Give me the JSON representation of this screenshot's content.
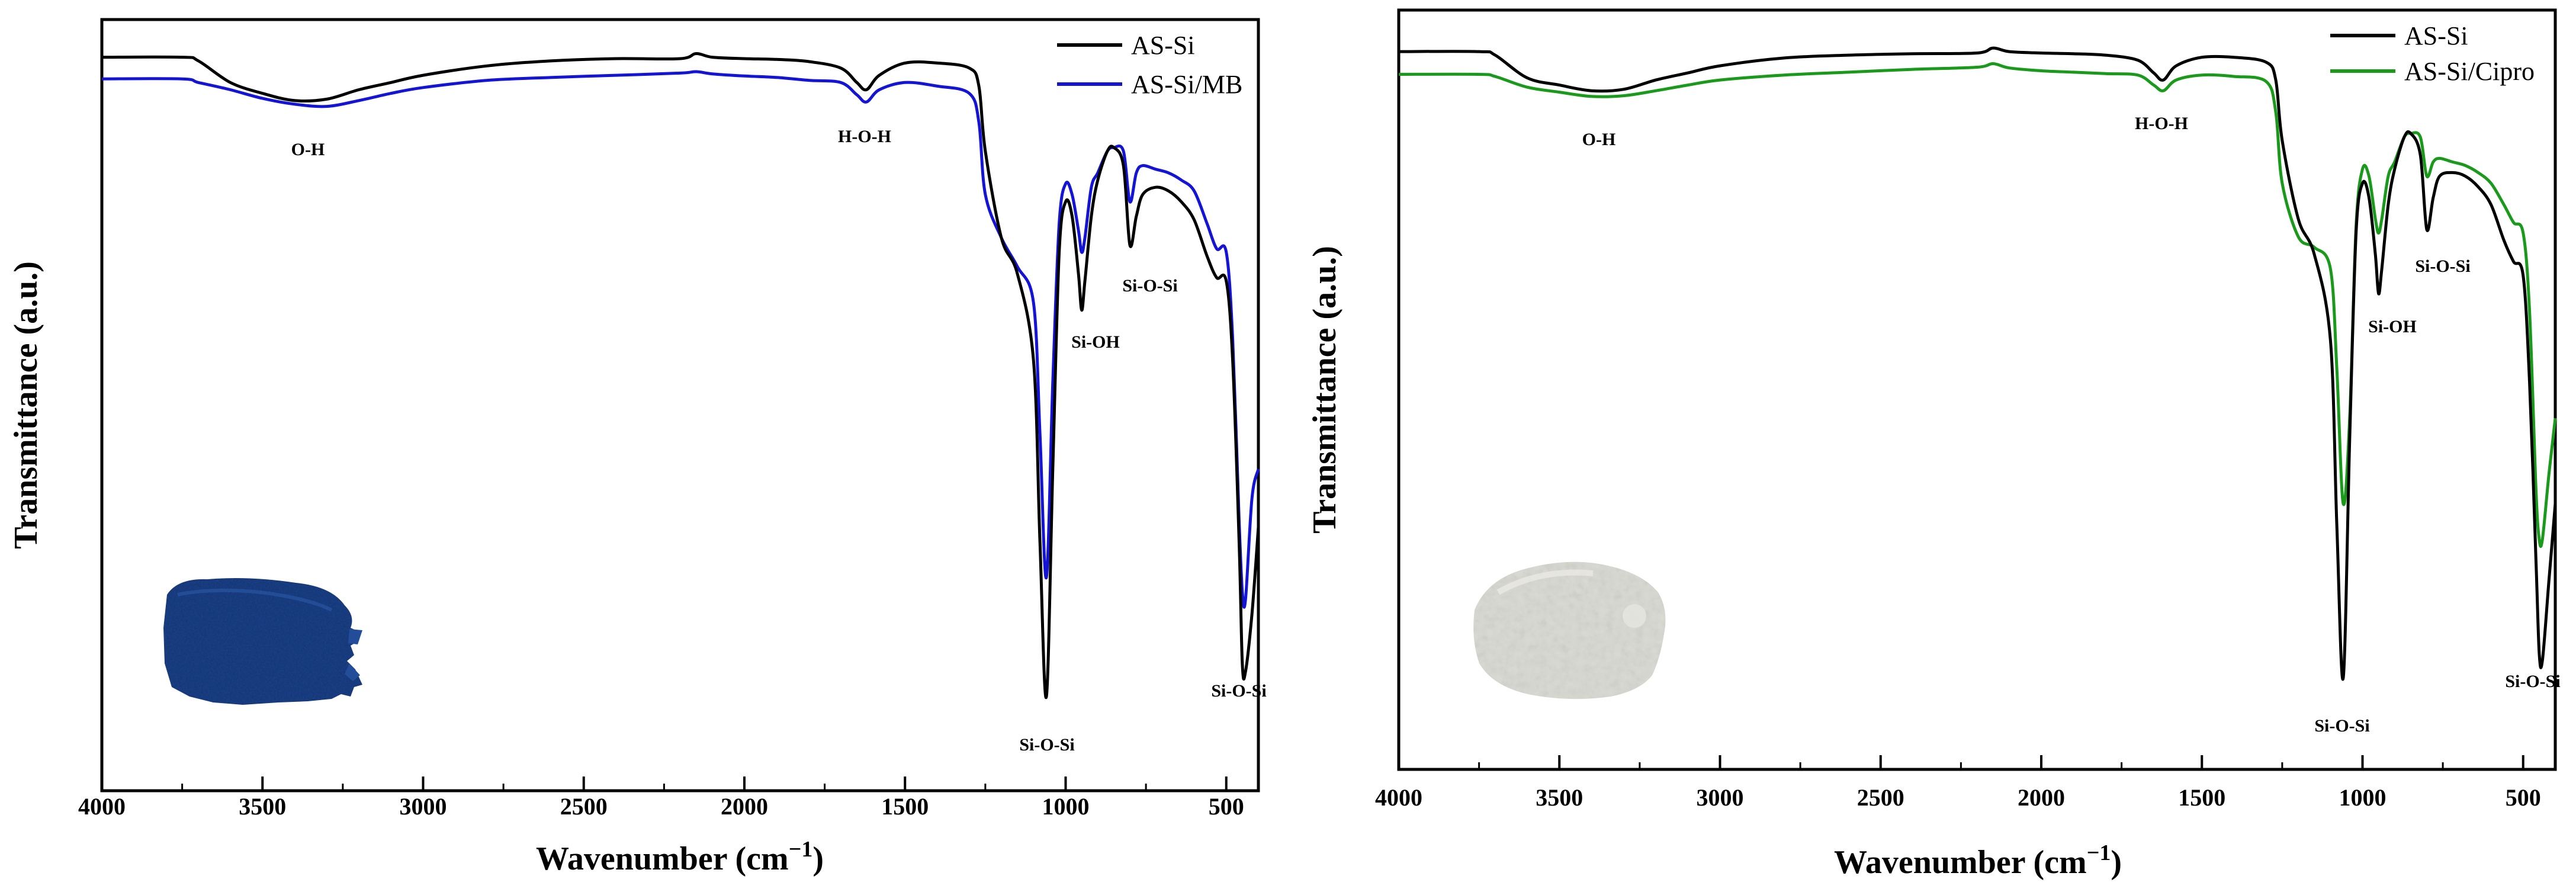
{
  "colors": {
    "as_si": "#000000",
    "as_si_mb": "#1414d6",
    "as_si_cipro": "#1a9a1a",
    "mb_powder": "#1b3f86",
    "cipro_powder": "#d9d9d2"
  },
  "chart_data": [
    {
      "type": "line",
      "title": "",
      "xlabel": "Wavenumber (cm",
      "xlabel_sup": "−1",
      "xlabel_end": ")",
      "ylabel": "Transmittance (a.u.)",
      "xlim": [
        4000,
        400
      ],
      "x_reversed": true,
      "y_ticks_shown": false,
      "ylim": [
        0,
        100
      ],
      "x_ticks": [
        "4000",
        "3500",
        "3000",
        "2500",
        "2000",
        "1500",
        "1000",
        "500"
      ],
      "legend_position": "top-right",
      "series": [
        {
          "name": "AS-Si",
          "color": "#000000",
          "x": [
            4000,
            3750,
            3700,
            3600,
            3500,
            3400,
            3300,
            3200,
            3100,
            3000,
            2800,
            2600,
            2400,
            2200,
            2150,
            2100,
            2000,
            1900,
            1800,
            1700,
            1650,
            1620,
            1580,
            1500,
            1400,
            1300,
            1270,
            1250,
            1200,
            1150,
            1100,
            1080,
            1060,
            1040,
            1020,
            1000,
            980,
            960,
            950,
            940,
            920,
            900,
            870,
            850,
            820,
            800,
            780,
            760,
            720,
            680,
            640,
            600,
            560,
            530,
            500,
            480,
            460,
            450,
            440,
            420,
            400
          ],
          "y": [
            97,
            97,
            96.5,
            93.5,
            92,
            91,
            91.2,
            92.5,
            93.5,
            94.5,
            95.8,
            96.5,
            96.8,
            96.8,
            97.5,
            97,
            96.8,
            96.7,
            96.4,
            95.5,
            93.5,
            92.5,
            94.5,
            96.2,
            96.2,
            95.5,
            93,
            84,
            72,
            67,
            55,
            30,
            8.5,
            40,
            70,
            77,
            75,
            67,
            62,
            66,
            75,
            80,
            84,
            84.5,
            82,
            71,
            75,
            78,
            79,
            78.5,
            77,
            74.5,
            69.5,
            66.5,
            66,
            55,
            30,
            13,
            12,
            20,
            32
          ]
        },
        {
          "name": "AS-Si/MB",
          "color": "#1414d6",
          "x": [
            4000,
            3750,
            3700,
            3600,
            3500,
            3400,
            3300,
            3200,
            3100,
            3000,
            2800,
            2600,
            2400,
            2200,
            2150,
            2100,
            2000,
            1900,
            1800,
            1700,
            1650,
            1620,
            1580,
            1500,
            1400,
            1300,
            1270,
            1250,
            1200,
            1150,
            1100,
            1080,
            1060,
            1040,
            1020,
            1000,
            980,
            960,
            950,
            940,
            920,
            900,
            870,
            850,
            820,
            800,
            780,
            760,
            720,
            680,
            640,
            600,
            560,
            530,
            500,
            480,
            460,
            450,
            440,
            420,
            400
          ],
          "y": [
            94,
            94,
            93.5,
            92.5,
            91.3,
            90.5,
            90.2,
            91,
            92,
            92.8,
            93.8,
            94.2,
            94.5,
            94.8,
            95,
            94.7,
            94.4,
            94.2,
            93.8,
            93.5,
            91.8,
            90.8,
            92.5,
            93.5,
            93,
            92,
            88,
            78,
            72,
            68,
            63,
            45,
            25,
            52,
            74,
            79.5,
            78,
            73,
            70,
            72,
            79,
            81,
            84,
            84.5,
            84,
            77,
            81,
            82,
            81.5,
            81,
            80,
            78.5,
            74,
            70.5,
            70,
            58,
            33,
            23,
            22,
            36,
            40
          ]
        }
      ],
      "annotations": [
        "O-H",
        "H-O-H",
        "Si-OH",
        "Si-O-Si",
        "Si-O-Si",
        "Si-O-Si"
      ],
      "inset_image": "blue methylene-blue loaded powder"
    },
    {
      "type": "line",
      "title": "",
      "xlabel": "Wavenumber (cm",
      "xlabel_sup": "−1",
      "xlabel_end": ")",
      "ylabel": "Transmittance (a.u.)",
      "xlim": [
        4000,
        400
      ],
      "x_reversed": true,
      "y_ticks_shown": false,
      "ylim": [
        0,
        100
      ],
      "x_ticks": [
        "4000",
        "3500",
        "3000",
        "2500",
        "2000",
        "1500",
        "1000",
        "500"
      ],
      "legend_position": "top-right",
      "series": [
        {
          "name": "AS-Si",
          "color": "#000000",
          "x": [
            4000,
            3750,
            3700,
            3600,
            3500,
            3400,
            3300,
            3200,
            3100,
            3000,
            2800,
            2600,
            2400,
            2200,
            2150,
            2100,
            2000,
            1900,
            1800,
            1700,
            1650,
            1620,
            1580,
            1500,
            1400,
            1300,
            1270,
            1250,
            1200,
            1150,
            1100,
            1080,
            1060,
            1040,
            1020,
            1000,
            980,
            960,
            950,
            940,
            920,
            900,
            870,
            850,
            820,
            800,
            780,
            760,
            720,
            680,
            640,
            600,
            560,
            530,
            500,
            480,
            460,
            450,
            440,
            420,
            400
          ],
          "y": [
            96.5,
            96.5,
            96,
            92.8,
            91.8,
            91,
            91.2,
            92.5,
            93.5,
            94.5,
            95.6,
            96,
            96.2,
            96.3,
            97,
            96.5,
            96.3,
            96.2,
            96,
            95.3,
            93.5,
            92.5,
            94.5,
            95.7,
            95.7,
            95,
            92.5,
            84,
            73,
            68,
            56,
            30,
            8.5,
            42,
            71,
            78,
            76,
            68,
            62.5,
            66,
            75,
            80,
            84.5,
            85,
            82,
            71.5,
            76,
            79,
            79.5,
            79,
            77.5,
            75,
            70,
            67,
            65,
            50,
            25,
            12,
            11,
            22,
            33
          ]
        },
        {
          "name": "AS-Si/Cipro",
          "color": "#1a9a1a",
          "x": [
            4000,
            3750,
            3700,
            3600,
            3500,
            3400,
            3300,
            3200,
            3100,
            3000,
            2800,
            2600,
            2400,
            2200,
            2150,
            2100,
            2000,
            1900,
            1800,
            1700,
            1650,
            1620,
            1580,
            1500,
            1400,
            1300,
            1270,
            1250,
            1200,
            1150,
            1100,
            1080,
            1060,
            1040,
            1020,
            1000,
            980,
            960,
            950,
            940,
            920,
            900,
            870,
            850,
            820,
            800,
            780,
            760,
            720,
            680,
            640,
            600,
            560,
            530,
            500,
            480,
            460,
            450,
            440,
            420,
            400
          ],
          "y": [
            93.3,
            93.3,
            93,
            91.5,
            90.8,
            90.2,
            90.3,
            91,
            91.8,
            92.5,
            93.2,
            93.6,
            94,
            94.3,
            94.8,
            94.2,
            93.8,
            93.6,
            93.4,
            93.2,
            91.8,
            91,
            92.5,
            93.2,
            93,
            92.3,
            88,
            78,
            70.5,
            69,
            66,
            52,
            33,
            45,
            72,
            80,
            79,
            73,
            71,
            73,
            79,
            81,
            84.5,
            85,
            84.5,
            79,
            81,
            81.5,
            81,
            80.5,
            79.5,
            78,
            75,
            72.5,
            71,
            60,
            35,
            28,
            28,
            37,
            45
          ]
        }
      ],
      "annotations": [
        "O-H",
        "H-O-H",
        "Si-OH",
        "Si-O-Si",
        "Si-O-Si",
        "Si-O-Si"
      ],
      "inset_image": "white ciprofloxacin loaded powder"
    }
  ]
}
